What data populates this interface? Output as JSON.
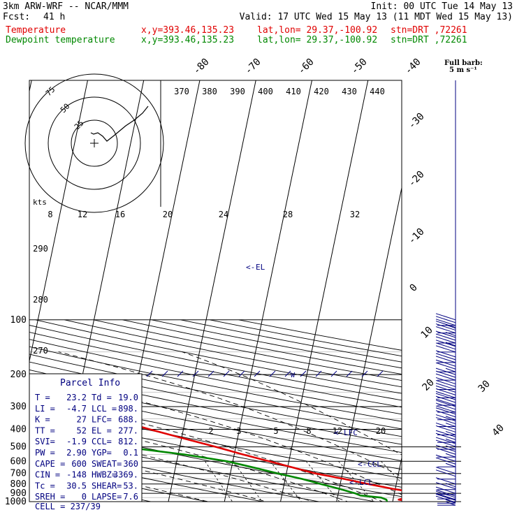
{
  "header": {
    "model": "3km ARW-WRF -- NCAR/MMM",
    "init": "Init: 00 UTC Tue 14 May 13",
    "fcst_label": "Fcst:",
    "fcst_value": "41 h",
    "valid": "Valid: 17 UTC Wed 15 May 13 (11 MDT Wed 15 May 13)",
    "temp_label": "Temperature",
    "dew_label": "Dewpoint temperature",
    "xy": "x,y=393.46,135.23",
    "latlon": "lat,lon= 29.37,-100.92",
    "stn": "stn=DRT ,72261",
    "barb_key_1": "Full barb:",
    "barb_key_2": "5 m s⁻¹"
  },
  "colors": {
    "temperature": "#e00000",
    "dewpoint": "#008800",
    "annot": "#000080"
  },
  "chart_data": {
    "type": "line",
    "title": "",
    "ylabel": "",
    "ylim": [
      1000,
      100
    ],
    "pressure_labels": [
      "100",
      "200",
      "300",
      "400",
      "500",
      "600",
      "700",
      "800",
      "900",
      "1000"
    ],
    "isotherm_labels": [
      "-80",
      "-70",
      "-60",
      "-50",
      "-40",
      "-30",
      "-20",
      "-10",
      "0",
      "10",
      "20",
      "30",
      "40"
    ],
    "theta_labels": [
      "370",
      "380",
      "390",
      "400",
      "410",
      "420",
      "430",
      "440"
    ],
    "theta_left_labels": [
      "290",
      "280",
      "270"
    ],
    "mixing_ratio_labels": [
      "2",
      "3",
      "5",
      "8",
      "12",
      "20"
    ],
    "series": [
      {
        "name": "Temperature",
        "p": [
          1000,
          975,
          950,
          925,
          900,
          875,
          850,
          800,
          750,
          700,
          650,
          600,
          550,
          500,
          450,
          400,
          350,
          300,
          250,
          200,
          175,
          150,
          125,
          110,
          100
        ],
        "t": [
          23.2,
          21.0,
          22.5,
          25.0,
          24.0,
          22.0,
          19.5,
          15.0,
          10.5,
          5.2,
          1.0,
          -3.5,
          -8.5,
          -13.5,
          -19.5,
          -26.0,
          -33.0,
          -41.0,
          -50.0,
          -58.0,
          -61.0,
          -63.5,
          -64.5,
          -64.0,
          -63.0
        ]
      },
      {
        "name": "Dewpoint temperature",
        "p": [
          1000,
          975,
          950,
          925,
          900,
          875,
          850,
          800,
          750,
          700,
          650,
          600,
          550,
          500,
          470,
          450,
          430,
          420,
          400,
          370,
          350,
          300,
          250,
          200,
          175,
          150,
          125,
          110,
          100
        ],
        "t": [
          19.0,
          18.8,
          17.8,
          14.0,
          13.0,
          11.5,
          10.0,
          6.5,
          3.0,
          -1.5,
          -6.0,
          -11.0,
          -19.0,
          -30.0,
          -44.0,
          -53.0,
          -58.0,
          -60.0,
          -56.0,
          -50.0,
          -47.0,
          -47.0,
          -55.0,
          -66.0,
          -71.0,
          -76.0,
          -81.0,
          -83.0,
          -84.0
        ]
      }
    ]
  },
  "levels": {
    "el": "EL",
    "lfc": "LFC",
    "ccl": "CCL",
    "lcl": "LCL"
  },
  "hodograph": {
    "units": "kts",
    "ring_labels": [
      "25",
      "50",
      "75"
    ],
    "speed_labels": [
      "8",
      "12",
      "16",
      "20",
      "24",
      "28",
      "32"
    ]
  },
  "barb_scale": {
    "pressure": [
      100,
      110,
      125,
      140,
      160,
      180,
      200,
      225,
      250,
      275,
      300,
      330,
      360,
      400,
      440,
      480,
      530,
      600,
      700,
      800,
      850,
      900,
      950,
      975
    ],
    "speed": [
      35,
      35,
      35,
      30,
      30,
      25,
      30,
      30,
      30,
      30,
      30,
      25,
      25,
      25,
      25,
      25,
      25,
      25,
      20,
      15,
      10,
      20,
      25,
      25
    ]
  },
  "parcel_info": {
    "title": "Parcel Info",
    "rows": [
      [
        "T  =",
        "23.2",
        "Td =",
        "19.0"
      ],
      [
        "LI =",
        "-4.7",
        "LCL =",
        "898."
      ],
      [
        "K  =",
        "27",
        "LFC=",
        "688."
      ],
      [
        "TT =",
        "52",
        "EL =",
        "277."
      ],
      [
        "SVI=",
        "-1.9",
        "CCL=",
        "812."
      ],
      [
        "PW =",
        "2.90",
        "YGP=",
        "0.1"
      ],
      [
        "CAPE =",
        "600",
        "SWEAT=",
        "360"
      ],
      [
        "CIN =",
        "-148",
        "HWBZ=",
        "3369."
      ],
      [
        "Tc =",
        "30.5",
        "SHEAR=",
        "53."
      ],
      [
        "SREH =",
        "0",
        "LAPSE=",
        "7.6"
      ]
    ],
    "cell": "CELL = 237/39"
  }
}
